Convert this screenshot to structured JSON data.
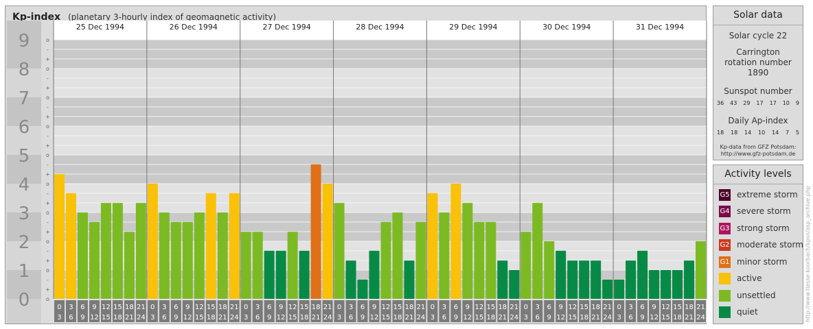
{
  "header": {
    "title": "Kp-index",
    "subtitle": "(planetary 3-hourly index of geomagnetic activity)"
  },
  "solar": {
    "title": "Solar data",
    "cycle": "Solar cycle 22",
    "carrington": "Carrington rotation number 1890",
    "sunspot_title": "Sunspot number",
    "sunspot_values": [
      "36",
      "43",
      "29",
      "17",
      "17",
      "10",
      "9"
    ],
    "ap_title": "Daily Ap-index",
    "ap_values": [
      "18",
      "18",
      "14",
      "10",
      "14",
      "7",
      "5"
    ],
    "source_line1": "Kp-data from GFZ Potsdam:",
    "source_line2": "http://www.gfz-potsdam.de"
  },
  "activity": {
    "title": "Activity levels",
    "items": [
      {
        "badge": "G5",
        "label": "extreme storm",
        "color": "#4b0026"
      },
      {
        "badge": "G4",
        "label": "severe storm",
        "color": "#7a0a4a"
      },
      {
        "badge": "G3",
        "label": "strong storm",
        "color": "#b0155f"
      },
      {
        "badge": "G2",
        "label": "moderate storm",
        "color": "#cc3a1f"
      },
      {
        "badge": "G1",
        "label": "minor storm",
        "color": "#e07018"
      },
      {
        "badge": "",
        "label": "active",
        "color": "#f9c108"
      },
      {
        "badge": "",
        "label": "unsettled",
        "color": "#7cba24"
      },
      {
        "badge": "",
        "label": "quiet",
        "color": "#078a45"
      }
    ]
  },
  "credit": "http://www.tiesse-koorbach/kpsn/asp_archive.php",
  "chart_data": {
    "type": "bar",
    "ylim": [
      0,
      9
    ],
    "yticks": [
      "0",
      "1",
      "2",
      "3",
      "4",
      "5",
      "6",
      "7",
      "8",
      "9"
    ],
    "third_marks": [
      "-",
      "o",
      "+"
    ],
    "days": [
      "25 Dec 1994",
      "26 Dec 1994",
      "27 Dec 1994",
      "28 Dec 1994",
      "29 Dec 1994",
      "30 Dec 1994",
      "31 Dec 1994"
    ],
    "interval_start": [
      "0",
      "3",
      "6",
      "9",
      "12",
      "15",
      "18",
      "21"
    ],
    "interval_end": [
      "3",
      "6",
      "9",
      "12",
      "15",
      "18",
      "21",
      "24"
    ],
    "values": [
      4.33,
      3.67,
      3.0,
      2.67,
      3.33,
      3.33,
      2.33,
      3.33,
      4.0,
      3.0,
      2.67,
      2.67,
      3.0,
      3.67,
      3.0,
      3.67,
      2.33,
      2.33,
      1.67,
      1.67,
      2.33,
      1.67,
      4.67,
      4.0,
      3.33,
      1.33,
      0.67,
      1.67,
      2.67,
      3.0,
      1.33,
      2.67,
      3.67,
      3.0,
      4.0,
      3.33,
      2.67,
      2.67,
      1.33,
      1.0,
      2.33,
      3.33,
      2.0,
      1.67,
      1.33,
      1.33,
      1.33,
      0.67,
      0.67,
      1.33,
      1.67,
      1.0,
      1.0,
      1.0,
      1.33,
      2.0
    ],
    "colors": {
      "quiet": "#078a45",
      "unsettled": "#7cba24",
      "active": "#f9c108",
      "minor_storm": "#e07018"
    }
  }
}
